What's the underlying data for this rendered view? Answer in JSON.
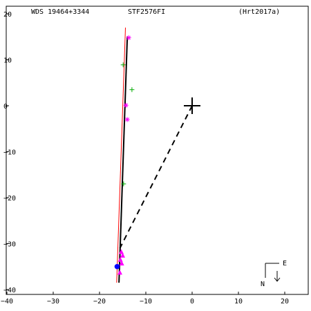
{
  "header": {
    "left": "WDS 19464+3344",
    "center": "STF2576FI",
    "right": "(Hrt2017a)"
  },
  "compass": {
    "east_label": "E",
    "north_label": "N"
  },
  "chart_data": {
    "type": "scatter",
    "title": "STF2576FI",
    "xlim": [
      -40,
      25
    ],
    "ylim": [
      -40,
      22
    ],
    "x_ticks": [
      -40,
      -30,
      -20,
      -10,
      0,
      10,
      20
    ],
    "x_tick_labels": [
      "−40",
      "−30",
      "−20",
      "−10",
      "0",
      "10",
      "20"
    ],
    "y_ticks": [
      20,
      10,
      0,
      -10,
      -20,
      -30,
      -40
    ],
    "y_tick_labels": [
      "20",
      "10",
      "0",
      "−10",
      "−20",
      "−30",
      "−40"
    ],
    "primary": {
      "x": 0,
      "y": 0
    },
    "fitted_orbit_line": {
      "from": [
        -15.8,
        -38.5
      ],
      "to": [
        -14.0,
        15.0
      ]
    },
    "reference_line": {
      "from": [
        -16.3,
        -38.5
      ],
      "to": [
        -14.4,
        17.0
      ]
    },
    "node_line": {
      "from": [
        0,
        0
      ],
      "to": [
        -15.6,
        -31.0
      ]
    },
    "series": [
      {
        "marker": "asterisk",
        "color": "#ff00ff",
        "points": [
          [
            -13.7,
            14.8
          ],
          [
            -14.3,
            0.1
          ],
          [
            -14.0,
            -3.0
          ]
        ]
      },
      {
        "marker": "plus",
        "color": "#00aa00",
        "points": [
          [
            -14.9,
            8.9
          ],
          [
            -13.0,
            3.5
          ],
          [
            -14.8,
            -17.0
          ]
        ]
      },
      {
        "marker": "triangle",
        "color": "#ff00ff",
        "points": [
          [
            -15.3,
            -31.8
          ],
          [
            -15.0,
            -32.6
          ],
          [
            -15.5,
            -33.5
          ],
          [
            -15.2,
            -34.3
          ],
          [
            -15.6,
            -36.3
          ]
        ]
      },
      {
        "marker": "dot",
        "color": "#0000ff",
        "points": [
          [
            -16.2,
            -35.0
          ]
        ]
      }
    ]
  }
}
